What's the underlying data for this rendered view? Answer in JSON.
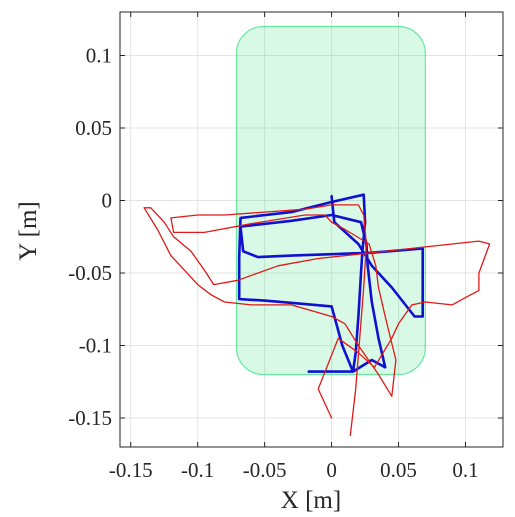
{
  "chart_data": {
    "type": "line",
    "xlabel": "X [m]",
    "ylabel": "Y [m]",
    "xlim": [
      -0.158,
      0.128
    ],
    "ylim": [
      -0.17,
      0.13
    ],
    "x_ticks": [
      -0.15,
      -0.1,
      -0.05,
      0,
      0.05,
      0.1
    ],
    "x_tick_labels": [
      "-0.15",
      "-0.1",
      "-0.05",
      "0",
      "0.05",
      "0.1"
    ],
    "y_ticks": [
      -0.15,
      -0.1,
      -0.05,
      0,
      0.05,
      0.1
    ],
    "y_tick_labels": [
      "-0.15",
      "-0.1",
      "-0.05",
      "0",
      "0.05",
      "0.1"
    ],
    "grid": true,
    "colors": {
      "region": "#2ee07a",
      "blue": "#1010d0",
      "red": "#e01818",
      "grid": "#e3e3e3"
    },
    "region": {
      "shape": "rounded-rect",
      "x": [
        -0.071,
        0.07
      ],
      "y": [
        -0.12,
        0.12
      ],
      "corner": 0.02
    },
    "series": [
      {
        "color": "#1010d0",
        "points": [
          [
            -0.017,
            -0.118
          ],
          [
            0.016,
            -0.118
          ],
          [
            0.018,
            -0.105
          ],
          [
            0.02,
            -0.08
          ],
          [
            0.022,
            -0.05
          ],
          [
            0.023,
            -0.035
          ],
          [
            0.025,
            -0.015
          ],
          [
            0.024,
            0.004
          ],
          [
            0.0,
            -0.001
          ],
          [
            -0.03,
            -0.008
          ],
          [
            -0.068,
            -0.012
          ],
          [
            -0.069,
            -0.04
          ],
          [
            -0.069,
            -0.068
          ],
          [
            -0.05,
            -0.069
          ],
          [
            -0.025,
            -0.071
          ],
          [
            0.0,
            -0.073
          ],
          [
            0.008,
            -0.1
          ],
          [
            0.016,
            -0.118
          ],
          [
            0.03,
            -0.11
          ],
          [
            0.04,
            -0.115
          ],
          [
            0.035,
            -0.095
          ],
          [
            0.03,
            -0.07
          ],
          [
            0.027,
            -0.045
          ],
          [
            0.026,
            -0.03
          ],
          [
            0.022,
            -0.015
          ],
          [
            0.0,
            -0.01
          ],
          [
            -0.03,
            -0.014
          ],
          [
            -0.068,
            -0.018
          ],
          [
            -0.066,
            -0.035
          ],
          [
            -0.055,
            -0.039
          ],
          [
            -0.03,
            -0.038
          ],
          [
            0.0,
            -0.037
          ],
          [
            0.03,
            -0.036
          ],
          [
            0.068,
            -0.033
          ],
          [
            0.068,
            -0.08
          ],
          [
            0.062,
            -0.08
          ],
          [
            0.045,
            -0.06
          ],
          [
            0.03,
            -0.045
          ],
          [
            0.02,
            -0.03
          ],
          [
            0.002,
            -0.015
          ],
          [
            0.0,
            0.003
          ]
        ]
      },
      {
        "color": "#e01818",
        "points": [
          [
            0.014,
            -0.162
          ],
          [
            0.018,
            -0.13
          ],
          [
            0.021,
            -0.095
          ],
          [
            0.024,
            -0.06
          ],
          [
            0.026,
            -0.03
          ],
          [
            0.024,
            -0.01
          ],
          [
            0.02,
            -0.003
          ],
          [
            0.0,
            -0.003
          ],
          [
            -0.02,
            -0.006
          ],
          [
            -0.05,
            -0.008
          ],
          [
            -0.08,
            -0.01
          ],
          [
            -0.1,
            -0.01
          ],
          [
            -0.12,
            -0.012
          ],
          [
            -0.118,
            -0.022
          ],
          [
            -0.095,
            -0.022
          ],
          [
            -0.06,
            -0.016
          ],
          [
            -0.02,
            -0.01
          ],
          [
            -0.005,
            -0.01
          ],
          [
            0.0,
            -0.015
          ],
          [
            0.01,
            -0.02
          ],
          [
            0.028,
            -0.03
          ],
          [
            0.033,
            -0.045
          ],
          [
            0.035,
            -0.06
          ],
          [
            0.04,
            -0.08
          ],
          [
            0.048,
            -0.11
          ],
          [
            0.045,
            -0.135
          ],
          [
            0.035,
            -0.12
          ],
          [
            0.02,
            -0.1
          ],
          [
            0.01,
            -0.085
          ],
          [
            0.0,
            -0.08
          ],
          [
            -0.03,
            -0.072
          ],
          [
            -0.06,
            -0.072
          ],
          [
            -0.08,
            -0.07
          ],
          [
            -0.09,
            -0.065
          ],
          [
            -0.1,
            -0.058
          ],
          [
            -0.11,
            -0.048
          ],
          [
            -0.12,
            -0.038
          ],
          [
            -0.13,
            -0.02
          ],
          [
            -0.14,
            -0.005
          ],
          [
            -0.135,
            -0.005
          ],
          [
            -0.125,
            -0.015
          ],
          [
            -0.118,
            -0.025
          ],
          [
            -0.105,
            -0.035
          ],
          [
            -0.095,
            -0.048
          ],
          [
            -0.088,
            -0.058
          ],
          [
            -0.07,
            -0.055
          ],
          [
            -0.04,
            -0.045
          ],
          [
            -0.01,
            -0.04
          ],
          [
            0.02,
            -0.037
          ],
          [
            0.06,
            -0.033
          ],
          [
            0.09,
            -0.03
          ],
          [
            0.11,
            -0.028
          ],
          [
            0.118,
            -0.03
          ],
          [
            0.11,
            -0.05
          ],
          [
            0.11,
            -0.062
          ],
          [
            0.1,
            -0.067
          ],
          [
            0.09,
            -0.072
          ],
          [
            0.07,
            -0.07
          ],
          [
            0.06,
            -0.072
          ],
          [
            0.05,
            -0.085
          ],
          [
            0.045,
            -0.095
          ],
          [
            0.032,
            -0.115
          ],
          [
            0.02,
            -0.105
          ],
          [
            0.005,
            -0.095
          ],
          [
            -0.01,
            -0.13
          ],
          [
            0.0,
            -0.15
          ]
        ]
      }
    ]
  }
}
